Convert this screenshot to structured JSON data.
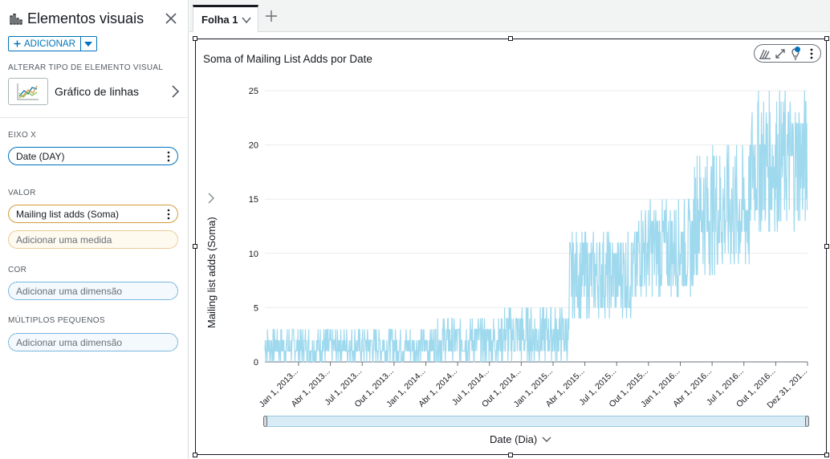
{
  "panel": {
    "title": "Elementos visuais",
    "add_label": "ADICIONAR",
    "visual_type_section": "ALTERAR TIPO DE ELEMENTO VISUAL",
    "visual_type_label": "Gráfico de linhas",
    "x_axis_section": "EIXO X",
    "x_axis_field": "Date (DAY)",
    "value_section": "VALOR",
    "value_field": "Mailing list adds (Soma)",
    "add_measure": "Adicionar uma medida",
    "color_section": "COR",
    "color_placeholder": "Adicionar uma dimensão",
    "small_multiples_section": "MÚLTIPLOS PEQUENOS",
    "small_multiples_placeholder": "Adicionar uma dimensão"
  },
  "tabs": [
    {
      "label": "Folha 1"
    }
  ],
  "colors": {
    "accent": "#0073bb",
    "series": "#9fd9ee",
    "value_pill": "#d29b3d"
  },
  "chart_data": {
    "type": "line",
    "title": "Soma of Mailing List Adds por Date",
    "xlabel": "Date (Dia)",
    "ylabel": "Mailing list adds (Soma)",
    "ylim": [
      0,
      25
    ],
    "yticks": [
      0,
      5,
      10,
      15,
      20,
      25
    ],
    "xlim": [
      "2013-01-01",
      "2016-12-31"
    ],
    "x_tick_labels": [
      "Jan 1, 2013...",
      "Abr 1, 2013...",
      "Jul 1, 2013...",
      "Out 1, 2013...",
      "Jan 1, 2014...",
      "Abr 1, 2014...",
      "Jul 1, 2014...",
      "Out 1, 2014...",
      "Jan 1, 2015...",
      "Abr 1, 2015...",
      "Jul 1, 2015...",
      "Out 1, 2015...",
      "Jan 1, 2016...",
      "Abr 1, 2016...",
      "Jul 1, 2016...",
      "Out 1, 2016...",
      "Dez 31, 201..."
    ],
    "grid": true,
    "series": [
      {
        "values_summary": "Daily values oscillating within bands",
        "bands": [
          {
            "from": "2013-01-01",
            "to": "2014-04-01",
            "min": 0,
            "max": 3
          },
          {
            "from": "2014-04-01",
            "to": "2014-10-01",
            "min": 0,
            "max": 4
          },
          {
            "from": "2014-10-01",
            "to": "2015-03-31",
            "min": 0,
            "max": 5
          },
          {
            "from": "2015-04-01",
            "to": "2015-10-01",
            "min": 4,
            "max": 12
          },
          {
            "from": "2015-10-01",
            "to": "2016-03-01",
            "min": 6,
            "max": 15
          },
          {
            "from": "2016-03-01",
            "to": "2016-08-01",
            "min": 8,
            "max": 20
          },
          {
            "from": "2016-08-01",
            "to": "2016-12-31",
            "min": 12,
            "max": 25
          }
        ]
      }
    ]
  }
}
